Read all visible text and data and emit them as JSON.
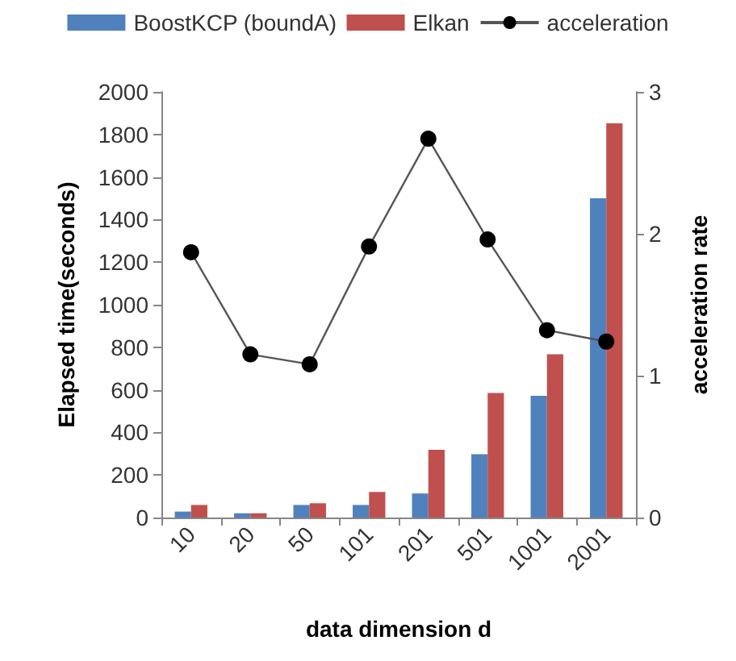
{
  "chart_data": {
    "type": "bar",
    "xlabel": "data dimension d",
    "ylabel": "Elapsed time(seconds)",
    "y2label": "acceleration rate",
    "categories": [
      "10",
      "20",
      "50",
      "101",
      "201",
      "501",
      "1001",
      "2001"
    ],
    "series": [
      {
        "name": "BoostKCP (boundA)",
        "color": "#4f81bd",
        "values": [
          28,
          20,
          59,
          59,
          113,
          297,
          572,
          1500
        ]
      },
      {
        "name": "Elkan",
        "color": "#c0504d",
        "values": [
          59,
          20,
          67,
          120,
          318,
          585,
          767,
          1852
        ]
      },
      {
        "name": "acceleration",
        "type": "line",
        "axis": "y2",
        "color": "#000000",
        "marker": "circle",
        "values": [
          1.87,
          1.15,
          1.08,
          1.91,
          2.67,
          1.96,
          1.32,
          1.24
        ]
      }
    ],
    "ylim": [
      0,
      2000
    ],
    "yticks": [
      0,
      200,
      400,
      600,
      800,
      1000,
      1200,
      1400,
      1600,
      1800,
      2000
    ],
    "y2lim": [
      0,
      3
    ],
    "y2ticks": [
      0,
      1,
      2,
      3
    ],
    "grid": false,
    "legend": "top"
  }
}
